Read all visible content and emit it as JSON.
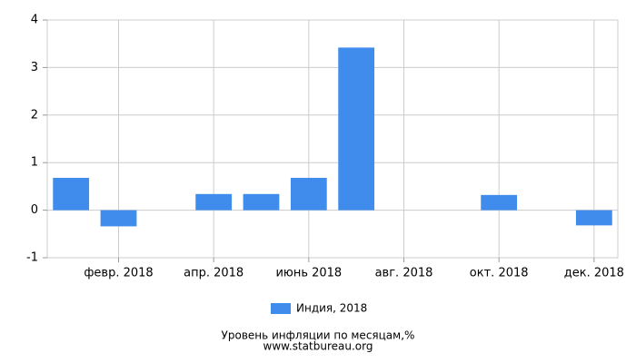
{
  "chart_data": {
    "type": "bar",
    "title": "Уровень инфляции по месяцам,%",
    "source": "www.statbureau.org",
    "categories": [
      null,
      "февр. 2018",
      null,
      "апр. 2018",
      null,
      "июнь 2018",
      null,
      "авг. 2018",
      null,
      "окт. 2018",
      null,
      "дек. 2018"
    ],
    "series": [
      {
        "name": "Индия, 2018",
        "color": "#3f8cec",
        "values": [
          0.68,
          -0.34,
          0,
          0.34,
          0.34,
          0.68,
          3.42,
          0,
          0,
          0.32,
          0,
          -0.32
        ]
      }
    ],
    "ylim": [
      -1,
      4
    ],
    "yticks": [
      -1,
      0,
      1,
      2,
      3,
      4
    ],
    "grid": true,
    "legend": "bottom"
  }
}
